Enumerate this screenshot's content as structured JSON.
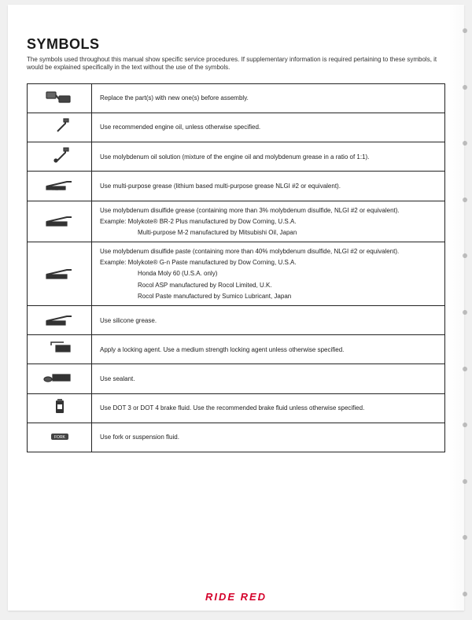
{
  "title": "SYMBOLS",
  "intro": "The symbols used throughout this manual show specific service procedures. If supplementary information is required pertaining to these symbols, it would be explained specifically in the text without the use of the symbols.",
  "brand": {
    "text": "RIDE RED",
    "color": "#d4002a"
  },
  "colors": {
    "page_bg": "#ffffff",
    "body_bg": "#f0f0f0",
    "border": "#222222",
    "text": "#222222"
  },
  "rows": [
    {
      "icon": "replace-part",
      "lines": [
        "Replace the part(s) with new one(s) before assembly."
      ]
    },
    {
      "icon": "engine-oil",
      "lines": [
        "Use recommended engine oil, unless otherwise specified."
      ]
    },
    {
      "icon": "moly-oil",
      "lines": [
        "Use molybdenum oil solution (mixture of the engine oil and molybdenum grease in a ratio of 1:1)."
      ]
    },
    {
      "icon": "grease",
      "lines": [
        "Use multi-purpose grease (lithium based multi-purpose grease NLGI #2 or equivalent)."
      ]
    },
    {
      "icon": "moly-grease",
      "lines": [
        "Use molybdenum disulfide grease (containing more than 3% molybdenum disulfide, NLGI #2 or equivalent).",
        "Example:  Molykote® BR-2 Plus manufactured by Dow Corning, U.S.A.",
        "Multi-purpose M-2 manufactured by Mitsubishi Oil, Japan"
      ],
      "indent_from": 2
    },
    {
      "icon": "moly-paste",
      "lines": [
        "Use molybdenum disulfide paste (containing more than 40% molybdenum disulfide, NLGI #2 or equivalent).",
        "Example:  Molykote® G-n Paste manufactured by Dow Corning, U.S.A.",
        "Honda Moly 60 (U.S.A. only)",
        "Rocol ASP manufactured by Rocol Limited, U.K.",
        "Rocol Paste manufactured by Sumico Lubricant, Japan"
      ],
      "indent_from": 2
    },
    {
      "icon": "silicone",
      "lines": [
        "Use silicone grease."
      ]
    },
    {
      "icon": "lock",
      "lines": [
        "Apply a locking agent. Use a medium strength locking agent unless otherwise specified."
      ]
    },
    {
      "icon": "sealant",
      "lines": [
        "Use sealant."
      ]
    },
    {
      "icon": "brake-fluid",
      "lines": [
        "Use DOT 3 or DOT 4 brake fluid. Use the recommended brake fluid unless otherwise specified."
      ]
    },
    {
      "icon": "fork-oil",
      "lines": [
        "Use fork or suspension fluid."
      ]
    }
  ]
}
